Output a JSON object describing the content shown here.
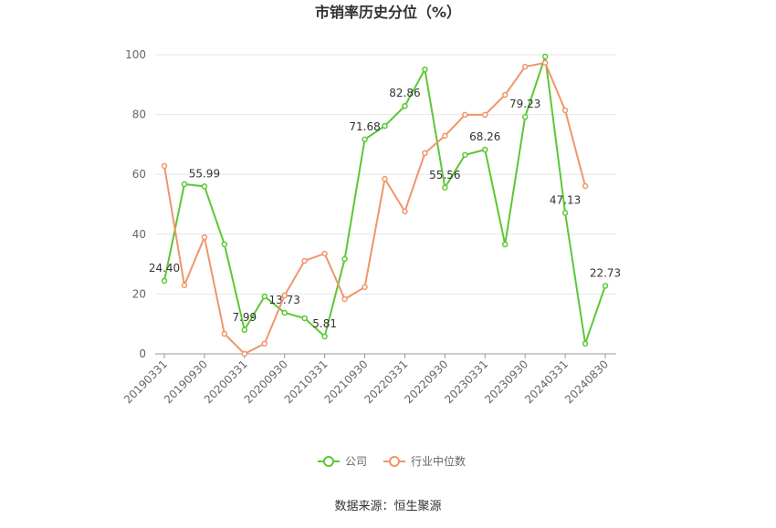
{
  "chart_data": {
    "type": "line",
    "title": "市销率历史分位（%）",
    "categories": [
      "20190331",
      null,
      "20190930",
      null,
      "20200331",
      null,
      "20200930",
      null,
      "20210331",
      null,
      "20210930",
      null,
      "20220331",
      null,
      "20220930",
      null,
      "20230331",
      null,
      "20230930",
      null,
      "20240331",
      null,
      "20240830"
    ],
    "series": [
      {
        "name": "公司",
        "color": "#5cc734",
        "values": [
          24.4,
          56.7,
          55.99,
          36.6,
          7.99,
          19.2,
          13.73,
          11.9,
          5.81,
          31.7,
          71.68,
          76.2,
          82.86,
          95.1,
          55.56,
          66.5,
          68.26,
          36.6,
          79.23,
          99.4,
          47.13,
          3.4,
          22.73
        ],
        "value_labels": [
          "24.40",
          null,
          "55.99",
          null,
          "7.99",
          null,
          "13.73",
          null,
          "5.81",
          null,
          "71.68",
          null,
          "82.86",
          null,
          "55.56",
          null,
          "68.26",
          null,
          "79.23",
          null,
          "47.13",
          null,
          "22.73"
        ]
      },
      {
        "name": "行业中位数",
        "color": "#f0956a",
        "values": [
          62.8,
          22.9,
          39.0,
          6.7,
          0.0,
          3.4,
          19.5,
          31.1,
          33.5,
          18.3,
          22.3,
          58.5,
          47.6,
          67.1,
          72.9,
          79.9,
          79.9,
          86.6,
          96.0,
          97.3,
          81.4,
          56.1,
          null
        ]
      }
    ],
    "ylim": [
      0,
      100
    ],
    "yticks": [
      0,
      20,
      40,
      60,
      80,
      100
    ],
    "grid": true,
    "legend": "bottom",
    "source": "数据来源：恒生聚源"
  }
}
